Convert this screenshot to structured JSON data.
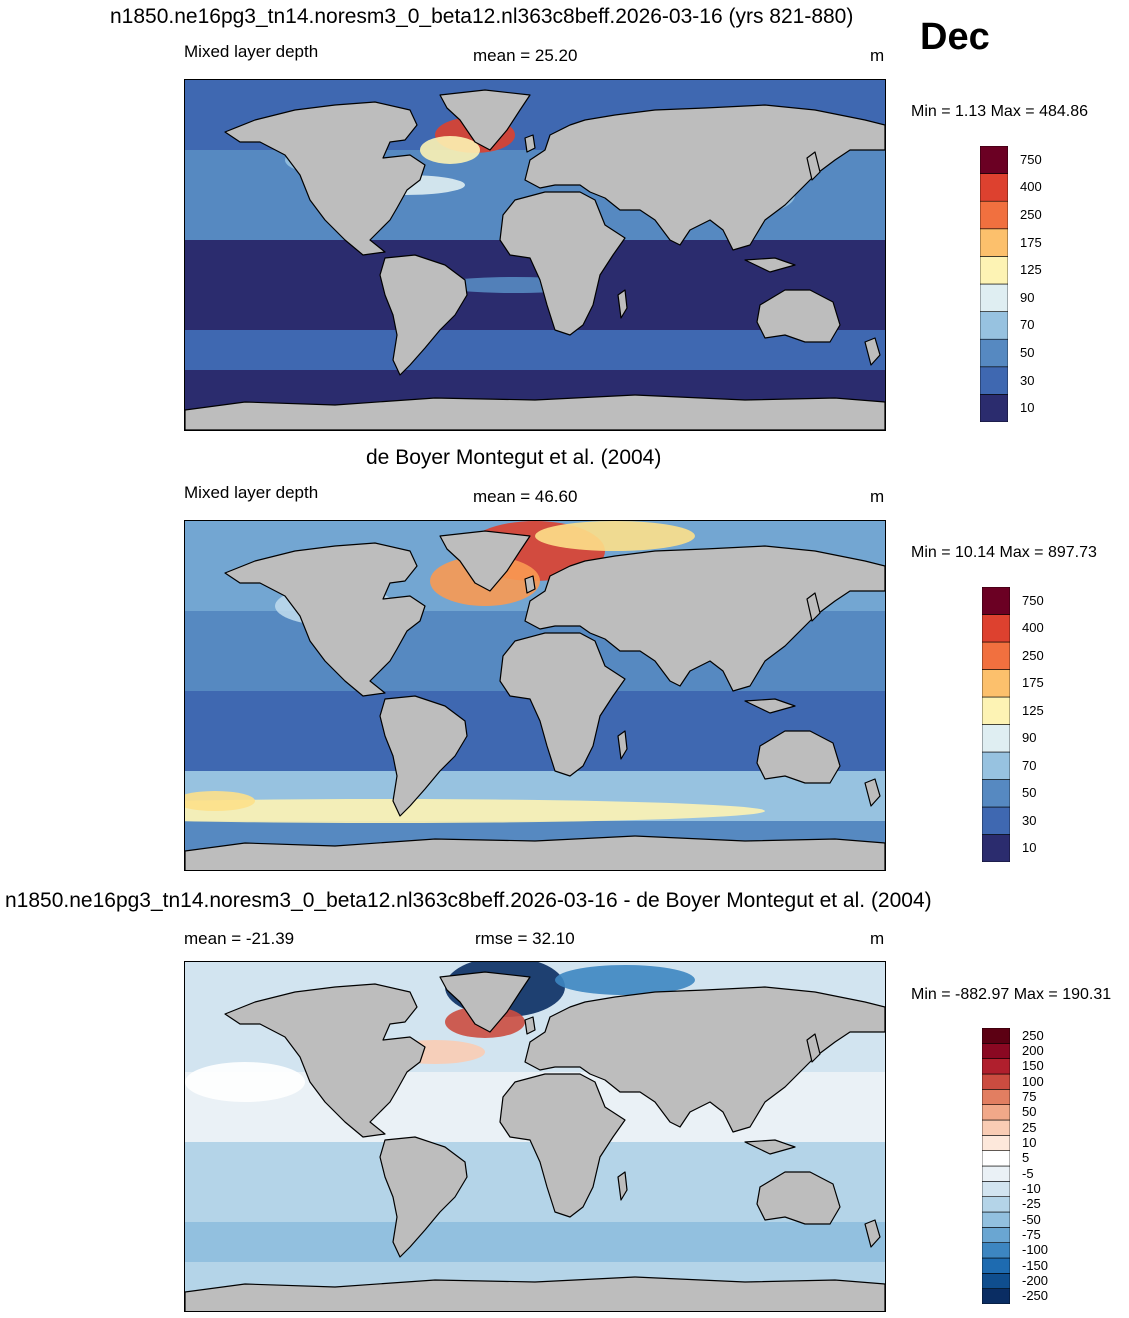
{
  "month_label": "Dec",
  "colors": {
    "land": "#bdbdbd",
    "coast": "#000000",
    "mld_scale": [
      "#2b2c6e",
      "#2f4a98",
      "#3f68b1",
      "#5689c1",
      "#73a6d2",
      "#97c2e0",
      "#bcd9ec",
      "#dfeef2",
      "#fdf3b4",
      "#fde08a",
      "#fcc06c",
      "#f99a52",
      "#f1703f",
      "#dd412f",
      "#b8202a",
      "#6b0023"
    ],
    "diff_scale": [
      "#0a2d63",
      "#0f4e8e",
      "#1e6bb0",
      "#3d86c1",
      "#6aa6d2",
      "#92c0df",
      "#b4d4e8",
      "#d2e4f0",
      "#eaf1f6",
      "#ffffff",
      "#fde8db",
      "#f9ccb4",
      "#f1a889",
      "#e27e61",
      "#cb4c40",
      "#b01f2d",
      "#8a0822",
      "#5c0013"
    ]
  },
  "panels": [
    {
      "title": "n1850.ne16pg3_tn14.noresm3_0_beta12.nl363c8beff.2026-03-16 (yrs 821-880)",
      "left_label": "Mixed layer depth",
      "center_label": "mean =  25.20",
      "units": "m",
      "minmax": "Min =   1.13 Max = 484.86",
      "colorbar_ticks": [
        "750",
        "400",
        "250",
        "175",
        "125",
        "90",
        "70",
        "50",
        "30",
        "10"
      ]
    },
    {
      "title": "de Boyer Montegut et al. (2004)",
      "left_label": "Mixed layer depth",
      "center_label": "mean =  46.60",
      "units": "m",
      "minmax": "Min =  10.14 Max = 897.73",
      "colorbar_ticks": [
        "750",
        "400",
        "250",
        "175",
        "125",
        "90",
        "70",
        "50",
        "30",
        "10"
      ]
    },
    {
      "title": "n1850.ne16pg3_tn14.noresm3_0_beta12.nl363c8beff.2026-03-16 - de Boyer Montegut et al. (2004)",
      "left_label": "mean = -21.39",
      "center_label": "rmse =  32.10",
      "units": "m",
      "minmax": "Min = -882.97 Max = 190.31",
      "colorbar_ticks": [
        "250",
        "200",
        "150",
        "100",
        "75",
        "50",
        "25",
        "10",
        "5",
        "-5",
        "-10",
        "-25",
        "-50",
        "-75",
        "-100",
        "-150",
        "-200",
        "-250"
      ]
    }
  ],
  "chart_data": [
    {
      "type": "heatmap",
      "title": "n1850.ne16pg3_tn14.noresm3_0_beta12.nl363c8beff.2026-03-16 (yrs 821-880)",
      "variable": "Mixed layer depth",
      "units": "m",
      "mean": 25.2,
      "min": 1.13,
      "max": 484.86,
      "colorbar_levels": [
        10,
        30,
        50,
        70,
        90,
        125,
        175,
        250,
        400,
        750
      ]
    },
    {
      "type": "heatmap",
      "title": "de Boyer Montegut et al. (2004)",
      "variable": "Mixed layer depth",
      "units": "m",
      "mean": 46.6,
      "min": 10.14,
      "max": 897.73,
      "colorbar_levels": [
        10,
        30,
        50,
        70,
        90,
        125,
        175,
        250,
        400,
        750
      ]
    },
    {
      "type": "heatmap",
      "title": "n1850.ne16pg3_tn14.noresm3_0_beta12.nl363c8beff.2026-03-16 - de Boyer Montegut et al. (2004)",
      "units": "m",
      "mean": -21.39,
      "rmse": 32.1,
      "min": -882.97,
      "max": 190.31,
      "colorbar_levels": [
        -250,
        -200,
        -150,
        -100,
        -75,
        -50,
        -25,
        -10,
        -5,
        5,
        10,
        25,
        50,
        75,
        100,
        150,
        200,
        250
      ]
    }
  ]
}
